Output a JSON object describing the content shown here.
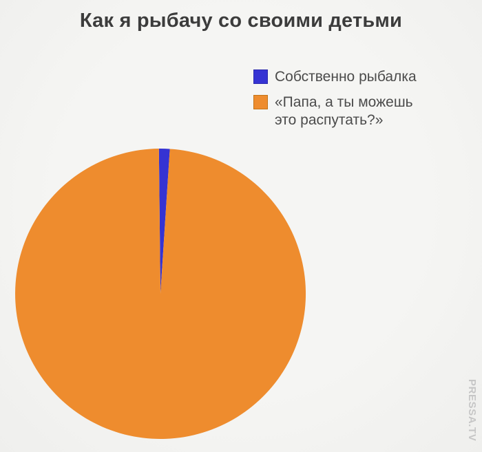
{
  "page": {
    "background_color": "#f3f3f1"
  },
  "title": "Как я рыбачу со своими детьми",
  "legend": {
    "position": "top-right",
    "items": [
      {
        "lines": [
          "Собственно рыбалка"
        ]
      },
      {
        "lines": [
          "«Папа, а ты можешь",
          "это распутать?»"
        ]
      }
    ]
  },
  "watermark": "PRESSA.TV",
  "colors": {
    "title_text": "#3c3c3c",
    "legend_text": "#4b4b4b",
    "watermark_text": "#c6c6c6"
  },
  "chart_data": {
    "type": "pie",
    "title": "Как я рыбачу со своими детьми",
    "slices": [
      {
        "label": "Собственно рыбалка",
        "value": 1.2,
        "color": "#3533d3",
        "border_color": "#2b29ad"
      },
      {
        "label": "«Папа, а ты можешь это распутать?»",
        "value": 98.8,
        "color": "#ee8c2e",
        "border_color": "#c27317"
      }
    ],
    "unit": "percent (estimated from wedge angle ≈ 4.3°)",
    "start_angle_deg": -0.6,
    "legend_position": "top-right",
    "data_labels": false,
    "axes": false,
    "grid": false
  }
}
